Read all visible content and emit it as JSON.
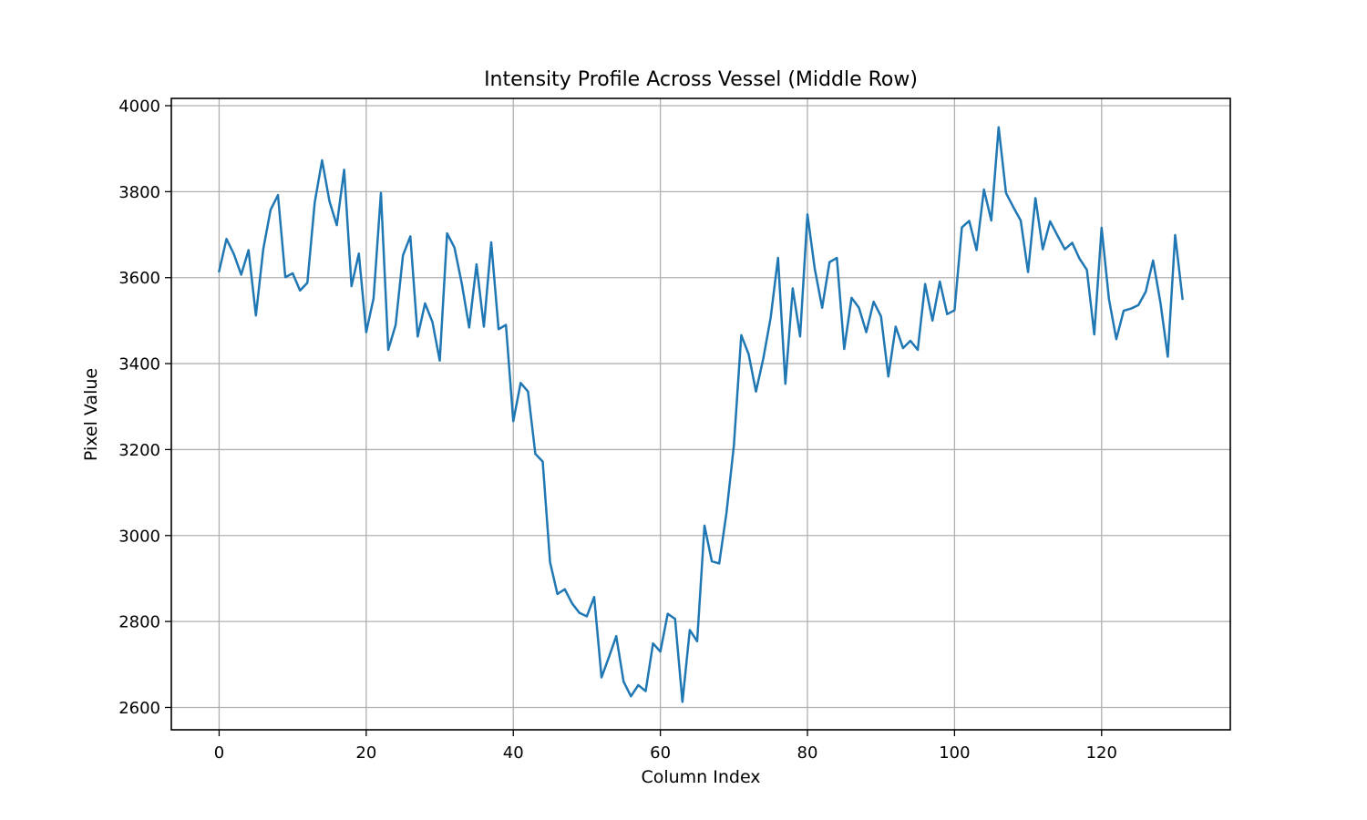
{
  "chart_data": {
    "type": "line",
    "title": "Intensity Profile Across Vessel (Middle Row)",
    "xlabel": "Column Index",
    "ylabel": "Pixel Value",
    "xlim": [
      -6.5,
      137.5
    ],
    "ylim": [
      2548,
      4017
    ],
    "xticks": [
      0,
      20,
      40,
      60,
      80,
      100,
      120
    ],
    "yticks": [
      2600,
      2800,
      3000,
      3200,
      3400,
      3600,
      3800,
      4000
    ],
    "grid": true,
    "legend": "none",
    "series": [
      {
        "color": "#1f77b4",
        "x": [
          0,
          1,
          2,
          3,
          4,
          5,
          6,
          7,
          8,
          9,
          10,
          11,
          12,
          13,
          14,
          15,
          16,
          17,
          18,
          19,
          20,
          21,
          22,
          23,
          24,
          25,
          26,
          27,
          28,
          29,
          30,
          31,
          32,
          33,
          34,
          35,
          36,
          37,
          38,
          39,
          40,
          41,
          42,
          43,
          44,
          45,
          46,
          47,
          48,
          49,
          50,
          51,
          52,
          53,
          54,
          55,
          56,
          57,
          58,
          59,
          60,
          61,
          62,
          63,
          64,
          65,
          66,
          67,
          68,
          69,
          70,
          71,
          72,
          73,
          74,
          75,
          76,
          77,
          78,
          79,
          80,
          81,
          82,
          83,
          84,
          85,
          86,
          87,
          88,
          89,
          90,
          91,
          92,
          93,
          94,
          95,
          96,
          97,
          98,
          99,
          100,
          101,
          102,
          103,
          104,
          105,
          106,
          107,
          108,
          109,
          110,
          111,
          112,
          113,
          114,
          115,
          116,
          117,
          118,
          119,
          120,
          121,
          122,
          123,
          124,
          125,
          126,
          127,
          128,
          129,
          130,
          131
        ],
        "values": [
          3615,
          3690,
          3655,
          3607,
          3664,
          3512,
          3666,
          3758,
          3792,
          3601,
          3610,
          3570,
          3588,
          3775,
          3873,
          3778,
          3722,
          3851,
          3580,
          3656,
          3473,
          3552,
          3797,
          3432,
          3490,
          3652,
          3696,
          3463,
          3540,
          3497,
          3407,
          3703,
          3670,
          3586,
          3484,
          3631,
          3486,
          3682,
          3480,
          3490,
          3266,
          3355,
          3335,
          3190,
          3172,
          2938,
          2864,
          2875,
          2842,
          2820,
          2812,
          2857,
          2670,
          2717,
          2766,
          2660,
          2626,
          2652,
          2638,
          2749,
          2730,
          2818,
          2806,
          2613,
          2780,
          2754,
          3023,
          2940,
          2935,
          3054,
          3210,
          3466,
          3422,
          3335,
          3412,
          3507,
          3646,
          3353,
          3575,
          3463,
          3747,
          3620,
          3530,
          3636,
          3646,
          3434,
          3553,
          3530,
          3473,
          3544,
          3510,
          3370,
          3486,
          3436,
          3453,
          3432,
          3585,
          3500,
          3591,
          3515,
          3524,
          3717,
          3732,
          3664,
          3805,
          3733,
          3950,
          3797,
          3764,
          3733,
          3613,
          3785,
          3666,
          3731,
          3698,
          3666,
          3681,
          3644,
          3618,
          3468,
          3716,
          3550,
          3457,
          3523,
          3528,
          3536,
          3567,
          3640,
          3542,
          3416,
          3699,
          3551
        ]
      }
    ]
  }
}
